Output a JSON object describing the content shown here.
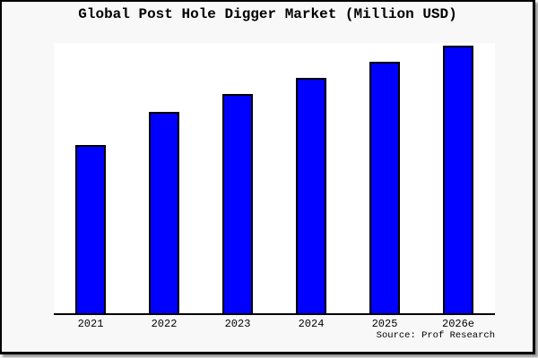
{
  "source_label": "Source: Prof Research",
  "colors": {
    "bar_fill": "#0000ff",
    "bar_edge": "#000000",
    "axis": "#000000",
    "plot_bg": "#ffffff",
    "figure_bg": "#f8f8f9",
    "frame_border": "#000000"
  },
  "chart_data": {
    "type": "bar",
    "title": "Global Post Hole Digger Market (Million USD)",
    "categories": [
      "2021",
      "2022",
      "2023",
      "2024",
      "2025",
      "2026e"
    ],
    "values": [
      188,
      225,
      245,
      263,
      281,
      299
    ],
    "xlabel": "",
    "ylabel": "",
    "ylim": [
      0,
      302
    ],
    "y_axis_visible": false,
    "gridlines": false,
    "legend": false,
    "annotations": [
      "Source: Prof Research"
    ]
  }
}
